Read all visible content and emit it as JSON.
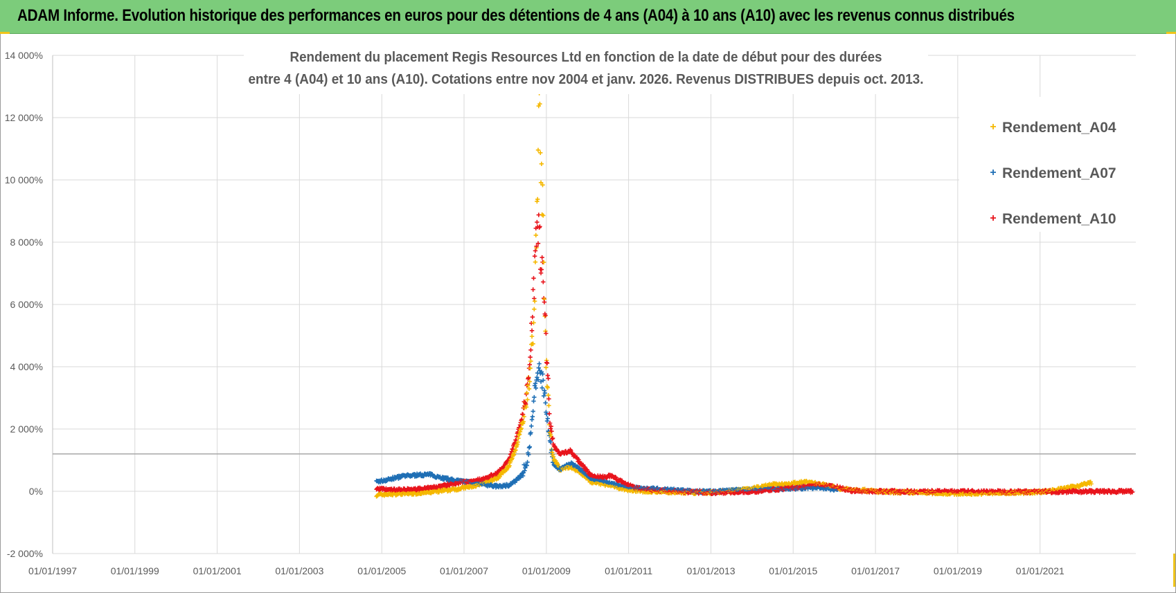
{
  "header": {
    "title": "ADAM Informe. Evolution historique des performances en euros pour des détentions de 4 ans (A04) à 10 ans (A10) avec les revenus connus distribués"
  },
  "colors": {
    "banner": "#7ccc7b",
    "A04": "#f5b800",
    "A07": "#1f6fb5",
    "A10": "#e8141c",
    "grid": "#d9d9d9",
    "text": "#595959"
  },
  "chart_data": {
    "type": "scatter",
    "title_lines": [
      "Rendement du placement Regis Resources Ltd en fonction de la date de début pour des durées",
      "entre 4 (A04) et 10 ans (A10). Cotations entre nov 2004 et janv. 2026. Revenus DISTRIBUES depuis oct. 2013."
    ],
    "xlabel": "",
    "ylabel": "",
    "x_range": [
      "1997-01-01",
      "2023-05-01"
    ],
    "x_ticks": [
      "01/01/1997",
      "01/01/1999",
      "01/01/2001",
      "01/01/2003",
      "01/01/2005",
      "01/01/2007",
      "01/01/2009",
      "01/01/2011",
      "01/01/2013",
      "01/01/2015",
      "01/01/2017",
      "01/01/2019",
      "01/01/2021"
    ],
    "y_range": [
      -2000,
      14000
    ],
    "y_ticks": [
      {
        "value": 14000,
        "label": "14 000%"
      },
      {
        "value": 12000,
        "label": "12 000%"
      },
      {
        "value": 10000,
        "label": "10 000%"
      },
      {
        "value": 8000,
        "label": "8 000%"
      },
      {
        "value": 6000,
        "label": "6 000%"
      },
      {
        "value": 4000,
        "label": "4 000%"
      },
      {
        "value": 2000,
        "label": "2 000%"
      },
      {
        "value": 0,
        "label": "0%"
      },
      {
        "value": -2000,
        "label": "-2 000%"
      }
    ],
    "reference_line": 1200,
    "grid": true,
    "legend_position": "top-right",
    "marker": "+",
    "series": [
      {
        "name": "Rendement_A04",
        "color": "#f5b800",
        "points": [
          [
            "2004-11-15",
            -120
          ],
          [
            "2005-03-01",
            -90
          ],
          [
            "2005-07-01",
            -70
          ],
          [
            "2005-11-01",
            -60
          ],
          [
            "2006-03-01",
            -30
          ],
          [
            "2006-07-01",
            20
          ],
          [
            "2006-11-01",
            80
          ],
          [
            "2007-03-01",
            150
          ],
          [
            "2007-07-01",
            250
          ],
          [
            "2007-11-01",
            450
          ],
          [
            "2008-02-01",
            800
          ],
          [
            "2008-04-01",
            1300
          ],
          [
            "2008-06-01",
            2200
          ],
          [
            "2008-08-01",
            3500
          ],
          [
            "2008-09-15",
            5500
          ],
          [
            "2008-10-01",
            8000
          ],
          [
            "2008-10-15",
            10000
          ],
          [
            "2008-10-25",
            11800
          ],
          [
            "2008-11-01",
            12100
          ],
          [
            "2008-11-10",
            11000
          ],
          [
            "2008-11-20",
            10300
          ],
          [
            "2008-12-01",
            8800
          ],
          [
            "2008-12-15",
            6000
          ],
          [
            "2009-01-01",
            4000
          ],
          [
            "2009-02-01",
            2000
          ],
          [
            "2009-03-01",
            1100
          ],
          [
            "2009-05-01",
            700
          ],
          [
            "2009-08-01",
            800
          ],
          [
            "2009-11-01",
            600
          ],
          [
            "2010-02-01",
            300
          ],
          [
            "2010-05-01",
            250
          ],
          [
            "2010-09-01",
            150
          ],
          [
            "2011-01-01",
            50
          ],
          [
            "2011-06-01",
            0
          ],
          [
            "2012-01-01",
            -20
          ],
          [
            "2012-06-01",
            -40
          ],
          [
            "2013-01-01",
            -40
          ],
          [
            "2013-06-01",
            0
          ],
          [
            "2014-01-01",
            80
          ],
          [
            "2014-06-01",
            200
          ],
          [
            "2015-01-01",
            250
          ],
          [
            "2015-05-01",
            300
          ],
          [
            "2015-10-01",
            200
          ],
          [
            "2016-03-01",
            80
          ],
          [
            "2016-09-01",
            40
          ],
          [
            "2017-03-01",
            -20
          ],
          [
            "2017-09-01",
            -30
          ],
          [
            "2018-03-01",
            -40
          ],
          [
            "2018-09-01",
            -60
          ],
          [
            "2019-03-01",
            -70
          ],
          [
            "2019-09-01",
            -60
          ],
          [
            "2020-03-01",
            -50
          ],
          [
            "2020-09-01",
            -40
          ],
          [
            "2021-03-01",
            0
          ],
          [
            "2021-09-01",
            100
          ],
          [
            "2022-01-01",
            200
          ],
          [
            "2022-04-01",
            280
          ]
        ]
      },
      {
        "name": "Rendement_A07",
        "color": "#1f6fb5",
        "points": [
          [
            "2004-11-15",
            300
          ],
          [
            "2005-03-01",
            380
          ],
          [
            "2005-07-01",
            480
          ],
          [
            "2005-11-01",
            520
          ],
          [
            "2006-03-01",
            540
          ],
          [
            "2006-07-01",
            420
          ],
          [
            "2006-11-01",
            330
          ],
          [
            "2007-03-01",
            300
          ],
          [
            "2007-07-01",
            220
          ],
          [
            "2007-11-01",
            150
          ],
          [
            "2008-02-01",
            200
          ],
          [
            "2008-04-01",
            320
          ],
          [
            "2008-06-01",
            550
          ],
          [
            "2008-07-15",
            1000
          ],
          [
            "2008-08-15",
            1800
          ],
          [
            "2008-09-15",
            3000
          ],
          [
            "2008-10-15",
            3800
          ],
          [
            "2008-11-01",
            4000
          ],
          [
            "2008-11-20",
            3700
          ],
          [
            "2008-12-15",
            3200
          ],
          [
            "2009-01-10",
            2400
          ],
          [
            "2009-02-01",
            1600
          ],
          [
            "2009-03-01",
            900
          ],
          [
            "2009-05-01",
            700
          ],
          [
            "2009-08-01",
            900
          ],
          [
            "2009-11-01",
            700
          ],
          [
            "2010-02-01",
            400
          ],
          [
            "2010-06-01",
            300
          ],
          [
            "2010-10-01",
            200
          ],
          [
            "2011-03-01",
            100
          ],
          [
            "2011-08-01",
            80
          ],
          [
            "2012-02-01",
            40
          ],
          [
            "2012-08-01",
            0
          ],
          [
            "2013-02-01",
            -10
          ],
          [
            "2013-08-01",
            30
          ],
          [
            "2014-02-01",
            60
          ],
          [
            "2014-08-01",
            80
          ],
          [
            "2015-02-01",
            100
          ],
          [
            "2015-08-01",
            120
          ],
          [
            "2016-02-01",
            60
          ]
        ]
      },
      {
        "name": "Rendement_A10",
        "color": "#e8141c",
        "points": [
          [
            "2004-11-15",
            80
          ],
          [
            "2005-03-01",
            50
          ],
          [
            "2005-07-01",
            40
          ],
          [
            "2005-11-01",
            60
          ],
          [
            "2006-03-01",
            100
          ],
          [
            "2006-07-01",
            180
          ],
          [
            "2006-11-01",
            280
          ],
          [
            "2007-03-01",
            320
          ],
          [
            "2007-07-01",
            400
          ],
          [
            "2007-11-01",
            600
          ],
          [
            "2008-02-01",
            1000
          ],
          [
            "2008-04-01",
            1600
          ],
          [
            "2008-06-01",
            2400
          ],
          [
            "2008-07-15",
            3200
          ],
          [
            "2008-08-15",
            4800
          ],
          [
            "2008-09-15",
            6800
          ],
          [
            "2008-10-01",
            8500
          ],
          [
            "2008-10-15",
            9000
          ],
          [
            "2008-11-01",
            8000
          ],
          [
            "2008-11-20",
            7500
          ],
          [
            "2008-12-15",
            6000
          ],
          [
            "2009-01-10",
            4000
          ],
          [
            "2009-02-01",
            2400
          ],
          [
            "2009-03-01",
            1500
          ],
          [
            "2009-05-01",
            1200
          ],
          [
            "2009-08-01",
            1300
          ],
          [
            "2009-11-01",
            900
          ],
          [
            "2010-02-01",
            500
          ],
          [
            "2010-05-01",
            450
          ],
          [
            "2010-08-01",
            500
          ],
          [
            "2010-11-01",
            300
          ],
          [
            "2011-03-01",
            100
          ],
          [
            "2011-08-01",
            40
          ],
          [
            "2012-02-01",
            0
          ],
          [
            "2012-08-01",
            -30
          ],
          [
            "2013-02-01",
            -40
          ],
          [
            "2013-08-01",
            -20
          ],
          [
            "2014-02-01",
            0
          ],
          [
            "2014-08-01",
            60
          ],
          [
            "2015-02-01",
            120
          ],
          [
            "2015-08-01",
            200
          ],
          [
            "2016-01-01",
            150
          ],
          [
            "2016-06-01",
            20
          ],
          [
            "2017-01-01",
            0
          ],
          [
            "2018-01-01",
            -10
          ],
          [
            "2019-01-01",
            -10
          ],
          [
            "2020-01-01",
            -15
          ],
          [
            "2021-01-01",
            -10
          ],
          [
            "2022-01-01",
            -5
          ],
          [
            "2023-01-01",
            -5
          ],
          [
            "2023-04-01",
            -5
          ]
        ]
      }
    ]
  }
}
